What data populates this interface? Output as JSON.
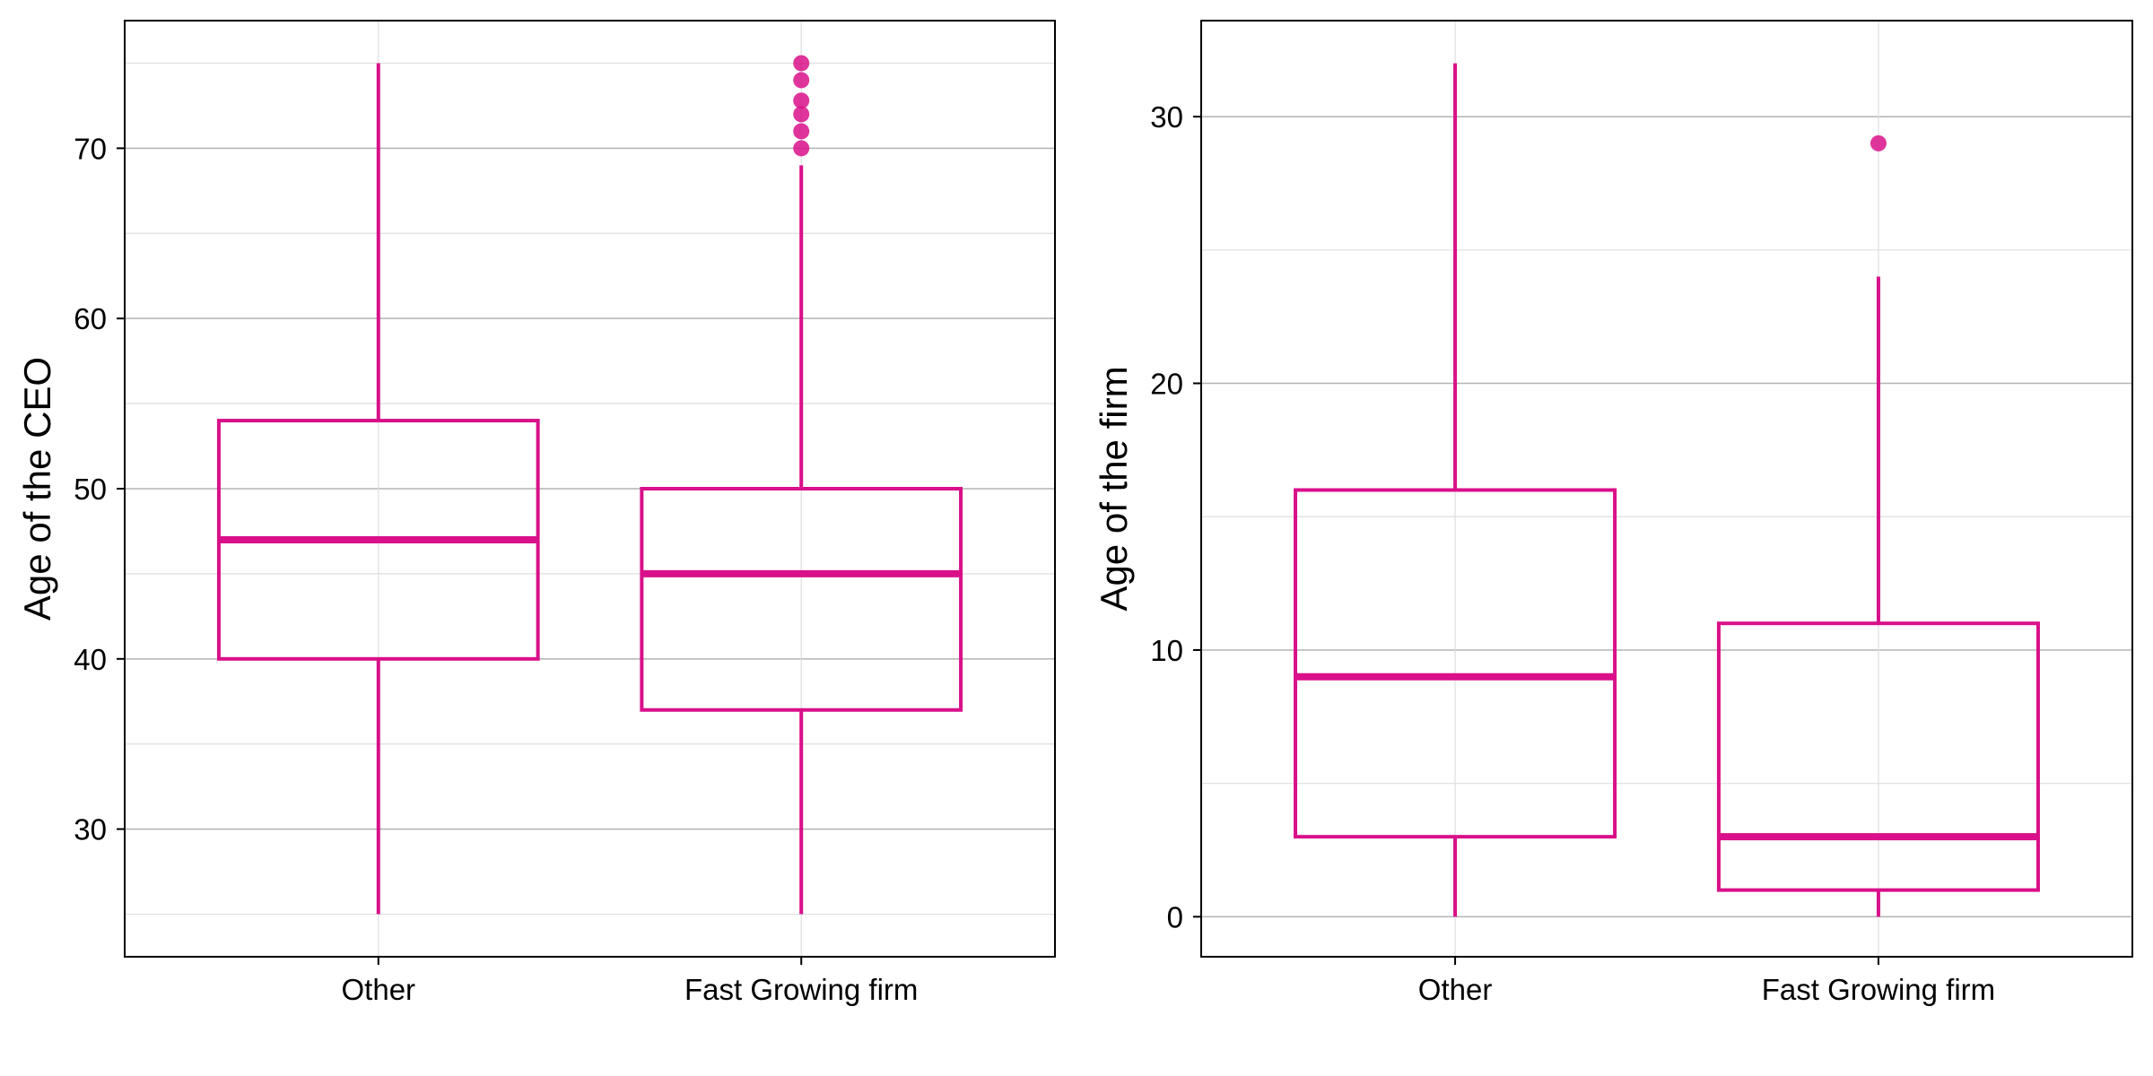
{
  "colors": {
    "box": "#d9108a",
    "outlier": "#d9108a",
    "grid_major": "#b3b3b3",
    "grid_minor": "#dedede",
    "frame": "#000000"
  },
  "chart_data": [
    {
      "type": "box",
      "title": "",
      "xlabel": "",
      "ylabel": "Age of the CEO",
      "ylim": [
        22.5,
        77.5
      ],
      "yticks": [
        30,
        40,
        50,
        60,
        70
      ],
      "ytick_labels": [
        "30",
        "40",
        "50",
        "60",
        "70"
      ],
      "yminor": [
        25,
        35,
        45,
        55,
        65,
        75
      ],
      "grid": true,
      "categories": [
        "Other",
        "Fast Growing firm"
      ],
      "boxes": [
        {
          "category": "Other",
          "whisker_low": 25,
          "q1": 40,
          "median": 47,
          "q3": 54,
          "whisker_high": 75,
          "outliers": []
        },
        {
          "category": "Fast Growing firm",
          "whisker_low": 25,
          "q1": 37,
          "median": 45,
          "q3": 50,
          "whisker_high": 69,
          "outliers": [
            70,
            71,
            72,
            72.8,
            74,
            75
          ]
        }
      ]
    },
    {
      "type": "box",
      "title": "",
      "xlabel": "",
      "ylabel": "Age of the firm",
      "ylim": [
        -1.5,
        33.6
      ],
      "yticks": [
        0,
        10,
        20,
        30
      ],
      "ytick_labels": [
        "0",
        "10",
        "20",
        "30"
      ],
      "yminor": [
        5,
        15,
        25
      ],
      "grid": true,
      "categories": [
        "Other",
        "Fast Growing firm"
      ],
      "boxes": [
        {
          "category": "Other",
          "whisker_low": 0,
          "q1": 3,
          "median": 9,
          "q3": 16,
          "whisker_high": 32,
          "outliers": []
        },
        {
          "category": "Fast Growing firm",
          "whisker_low": 0,
          "q1": 1,
          "median": 3,
          "q3": 11,
          "whisker_high": 24,
          "outliers": [
            29
          ]
        }
      ]
    }
  ]
}
